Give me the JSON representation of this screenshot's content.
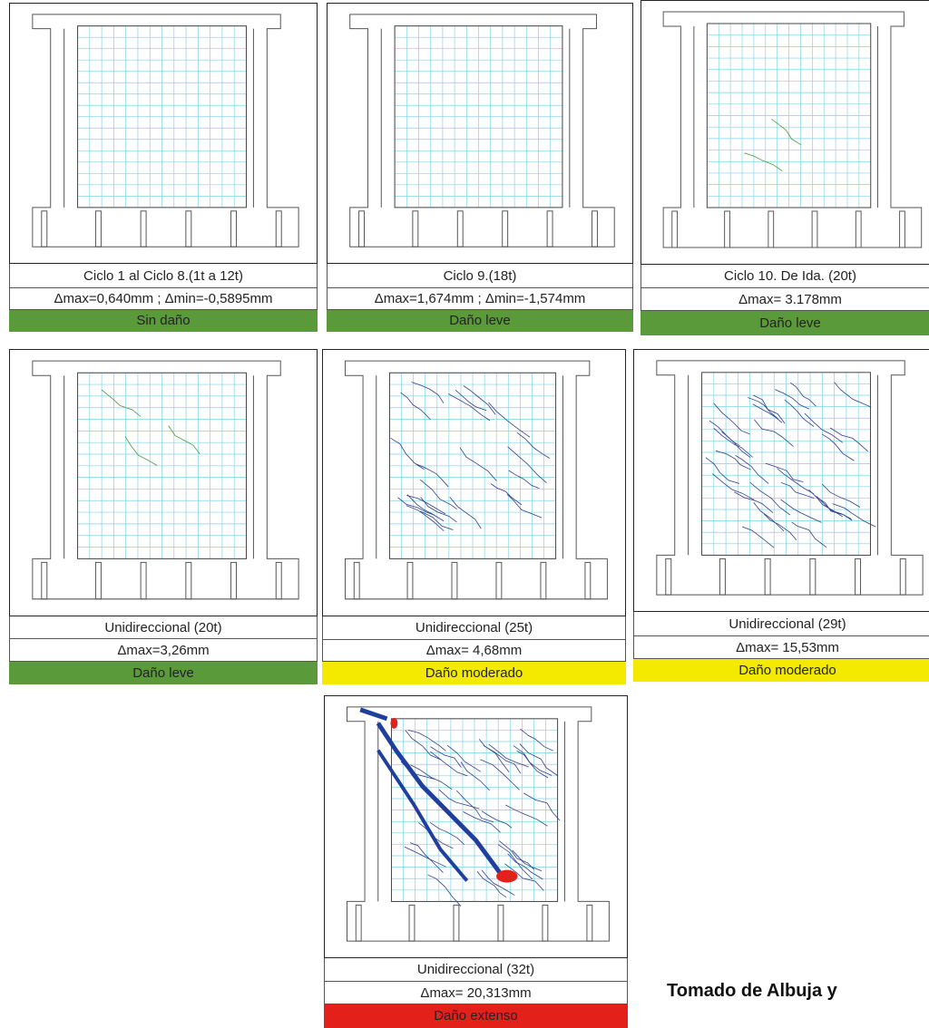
{
  "panels": [
    {
      "title": "Ciclo 1 al Ciclo 8.(1t a 12t)",
      "delta": "Δmax=0,640mm   ; Δmin=-0,5895mm",
      "damage": "Sin daño",
      "color": "#5b9a3a"
    },
    {
      "title": "Ciclo 9.(18t)",
      "delta": "Δmax=1,674mm ; Δmin=-1,574mm",
      "damage": "Daño leve",
      "color": "#5b9a3a"
    },
    {
      "title": "Ciclo 10. De Ida. (20t)",
      "delta": "Δmax= 3.178mm",
      "damage": "Daño leve",
      "color": "#5b9a3a"
    },
    {
      "title": "Unidireccional (20t)",
      "delta": "Δmax=3,26mm",
      "damage": "Daño leve",
      "color": "#5b9a3a"
    },
    {
      "title": "Unidireccional (25t)",
      "delta": "Δmax= 4,68mm",
      "damage": "Daño moderado",
      "color": "#f3ea00"
    },
    {
      "title": "Unidireccional (29t)",
      "delta": "Δmax= 15,53mm",
      "damage": "Daño moderado",
      "color": "#f3ea00"
    },
    {
      "title": "Unidireccional (32t)",
      "delta": "Δmax= 20,313mm",
      "damage": "Daño extenso",
      "color": "#e4201b"
    }
  ],
  "source": "Tomado de Albuja y"
}
